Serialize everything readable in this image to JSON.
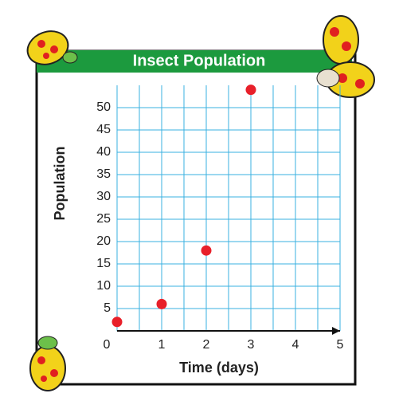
{
  "chart_data": {
    "type": "scatter",
    "title": "Insect Population",
    "x_label": "Time (days)",
    "y_label": "Population",
    "x": [
      0,
      1,
      2,
      3
    ],
    "values": [
      2,
      6,
      18,
      54
    ],
    "color": "#e8202a",
    "xlim": [
      0,
      5
    ],
    "ylim": [
      0,
      55
    ],
    "xticks": [
      0,
      1,
      2,
      3,
      4,
      5
    ],
    "xminor": [
      0.5,
      1.5,
      2.5,
      3.5,
      4.5
    ],
    "yticks": [
      5,
      10,
      15,
      20,
      25,
      30,
      35,
      40,
      45,
      50
    ],
    "grid": true
  }
}
